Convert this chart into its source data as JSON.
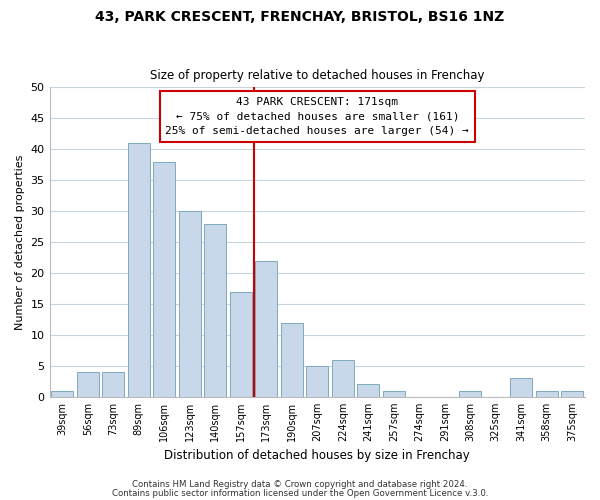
{
  "title": "43, PARK CRESCENT, FRENCHAY, BRISTOL, BS16 1NZ",
  "subtitle": "Size of property relative to detached houses in Frenchay",
  "xlabel": "Distribution of detached houses by size in Frenchay",
  "ylabel": "Number of detached properties",
  "bar_labels": [
    "39sqm",
    "56sqm",
    "73sqm",
    "89sqm",
    "106sqm",
    "123sqm",
    "140sqm",
    "157sqm",
    "173sqm",
    "190sqm",
    "207sqm",
    "224sqm",
    "241sqm",
    "257sqm",
    "274sqm",
    "291sqm",
    "308sqm",
    "325sqm",
    "341sqm",
    "358sqm",
    "375sqm"
  ],
  "bar_values": [
    1,
    4,
    4,
    41,
    38,
    30,
    28,
    17,
    22,
    12,
    5,
    6,
    2,
    1,
    0,
    0,
    1,
    0,
    3,
    1,
    1
  ],
  "bar_color": "#c8d8ea",
  "bar_edgecolor": "#7eaabf",
  "vline_color": "#cc0000",
  "vline_bar_index": 8,
  "ylim": [
    0,
    50
  ],
  "yticks": [
    0,
    5,
    10,
    15,
    20,
    25,
    30,
    35,
    40,
    45,
    50
  ],
  "annotation_title": "43 PARK CRESCENT: 171sqm",
  "annotation_line1": "← 75% of detached houses are smaller (161)",
  "annotation_line2": "25% of semi-detached houses are larger (54) →",
  "annotation_box_facecolor": "#ffffff",
  "annotation_box_edgecolor": "#cc0000",
  "footer_line1": "Contains HM Land Registry data © Crown copyright and database right 2024.",
  "footer_line2": "Contains public sector information licensed under the Open Government Licence v.3.0.",
  "background_color": "#ffffff",
  "grid_color": "#c8d4dc"
}
